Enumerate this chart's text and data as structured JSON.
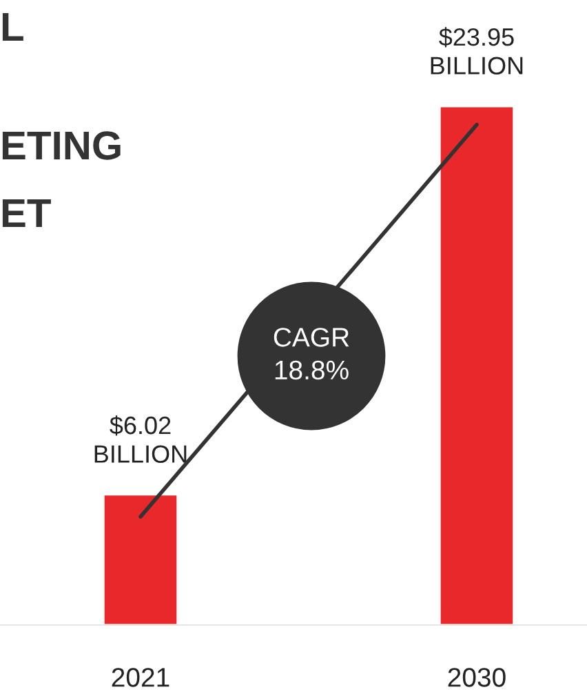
{
  "chart_data": {
    "type": "bar",
    "categories": [
      "2021",
      "2030"
    ],
    "series": [
      {
        "color": "#e8282b",
        "values": [
          6.02,
          23.95
        ],
        "value_labels": [
          "$6.02\nBILLION",
          "$23.95\nBILLION"
        ]
      },
      {
        "type": "line",
        "color": "#333333",
        "values": [
          5.0,
          23.1
        ]
      }
    ],
    "annotations": [
      "L",
      "ETING",
      "ET",
      "CAGR\n18.8%"
    ],
    "tick_labels": "x",
    "grid": false,
    "legend": false,
    "marker": "none"
  }
}
